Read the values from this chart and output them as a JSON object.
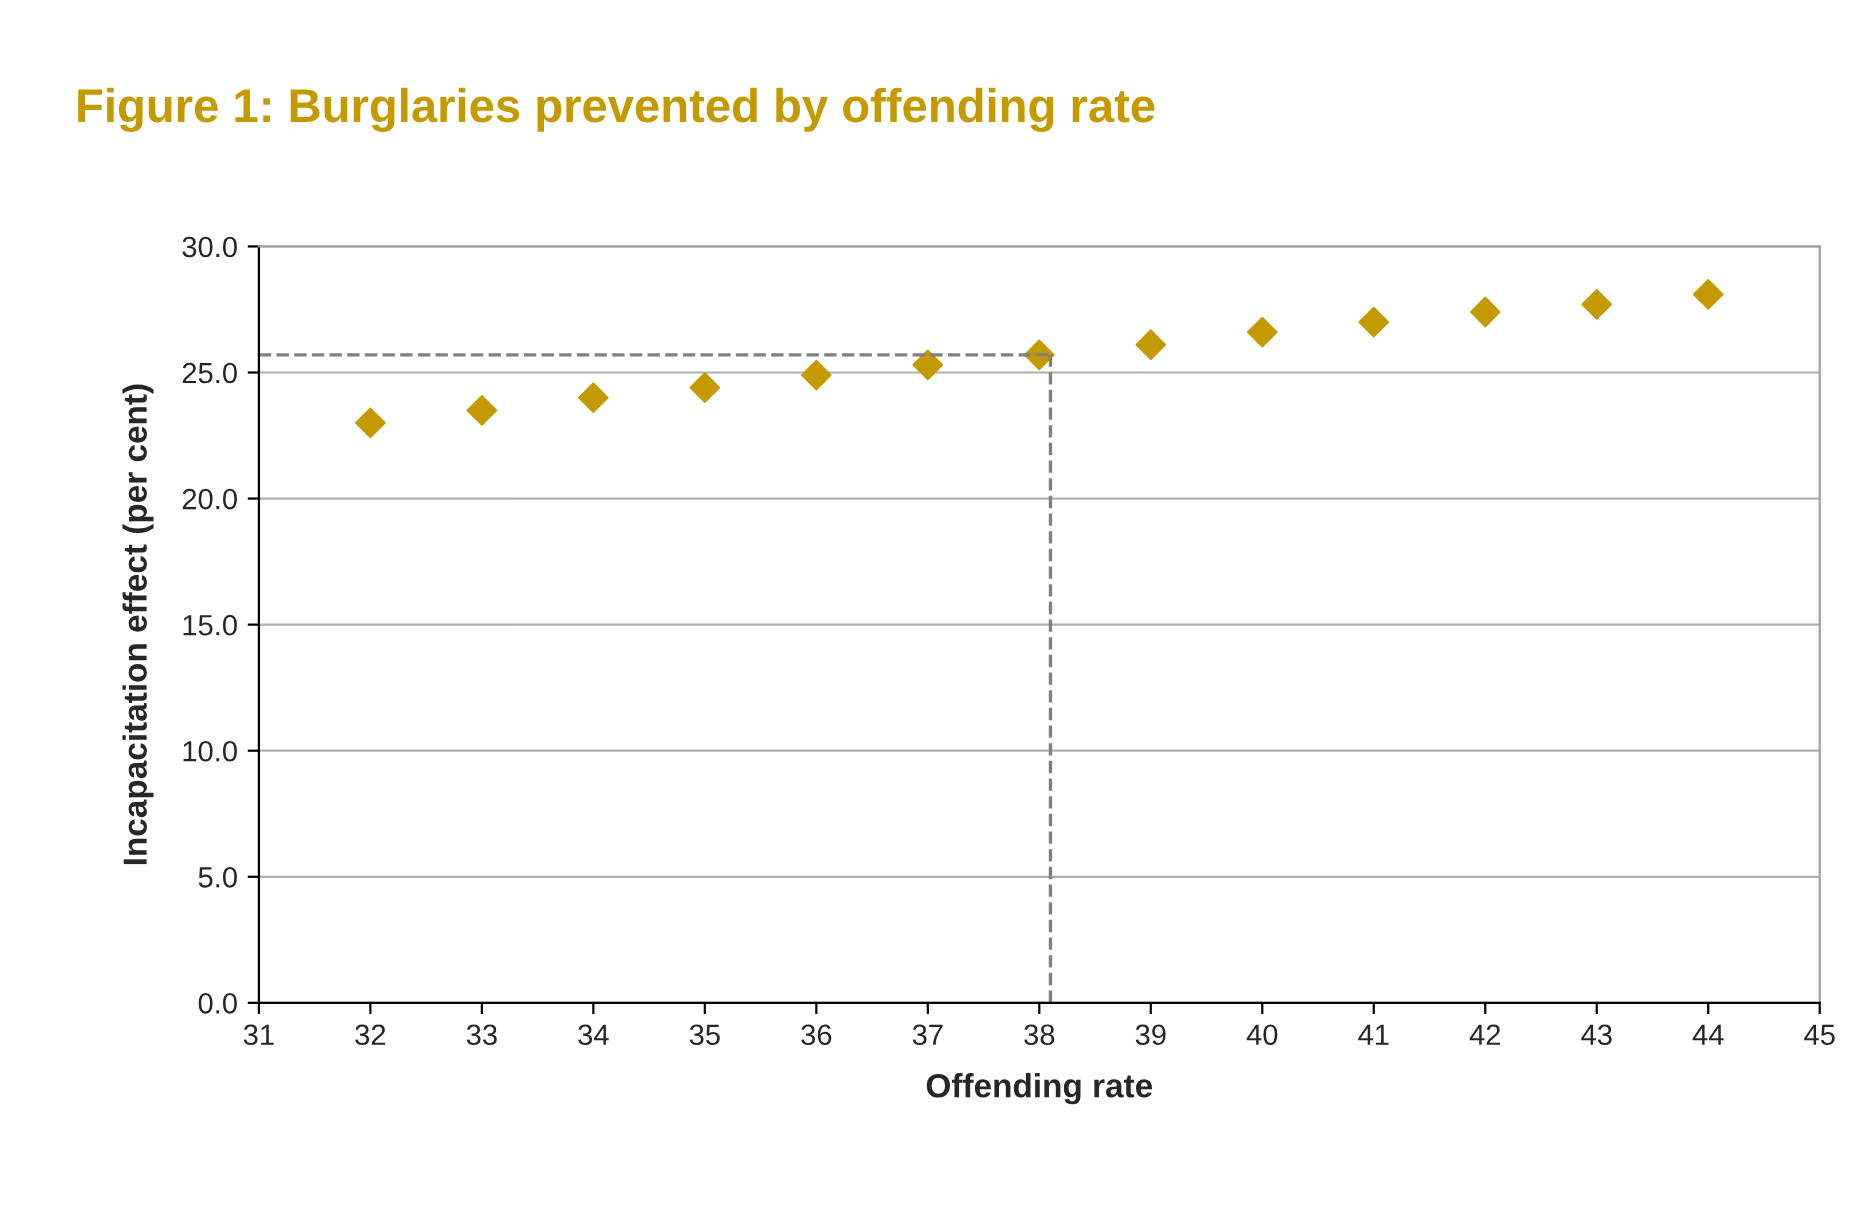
{
  "chart_data": {
    "type": "scatter",
    "title": "Figure 1: Burglaries prevented by offending rate",
    "xlabel": "Offending rate",
    "ylabel": "Incapacitation effect (per cent)",
    "x": [
      32,
      33,
      34,
      35,
      36,
      37,
      38,
      39,
      40,
      41,
      42,
      43,
      44
    ],
    "series": [
      {
        "color": "#c49a00",
        "values": [
          23.0,
          23.5,
          24.0,
          24.4,
          24.9,
          25.3,
          25.7,
          26.1,
          26.6,
          27.0,
          27.4,
          27.7,
          28.1
        ]
      }
    ],
    "xlim": [
      31,
      45
    ],
    "xticks": [
      31,
      32,
      33,
      34,
      35,
      36,
      37,
      38,
      39,
      40,
      41,
      42,
      43,
      44,
      45
    ],
    "ylim": [
      0,
      30
    ],
    "yticks": [
      {
        "value": 0,
        "label": "0.0"
      },
      {
        "value": 5,
        "label": "5.0"
      },
      {
        "value": 10,
        "label": "10.0"
      },
      {
        "value": 15,
        "label": "15.0"
      },
      {
        "value": 20,
        "label": "20.0"
      },
      {
        "value": 25,
        "label": "25.0"
      },
      {
        "value": 30,
        "label": "30.0"
      }
    ],
    "ref_lines": [
      {
        "axis": "y",
        "value": 25.7,
        "color": "#808080",
        "line_style": "dashed"
      },
      {
        "axis": "x",
        "value": 38.1,
        "color": "#808080",
        "line_style": "dashed"
      }
    ],
    "grid": "y",
    "marker": "diamond"
  }
}
